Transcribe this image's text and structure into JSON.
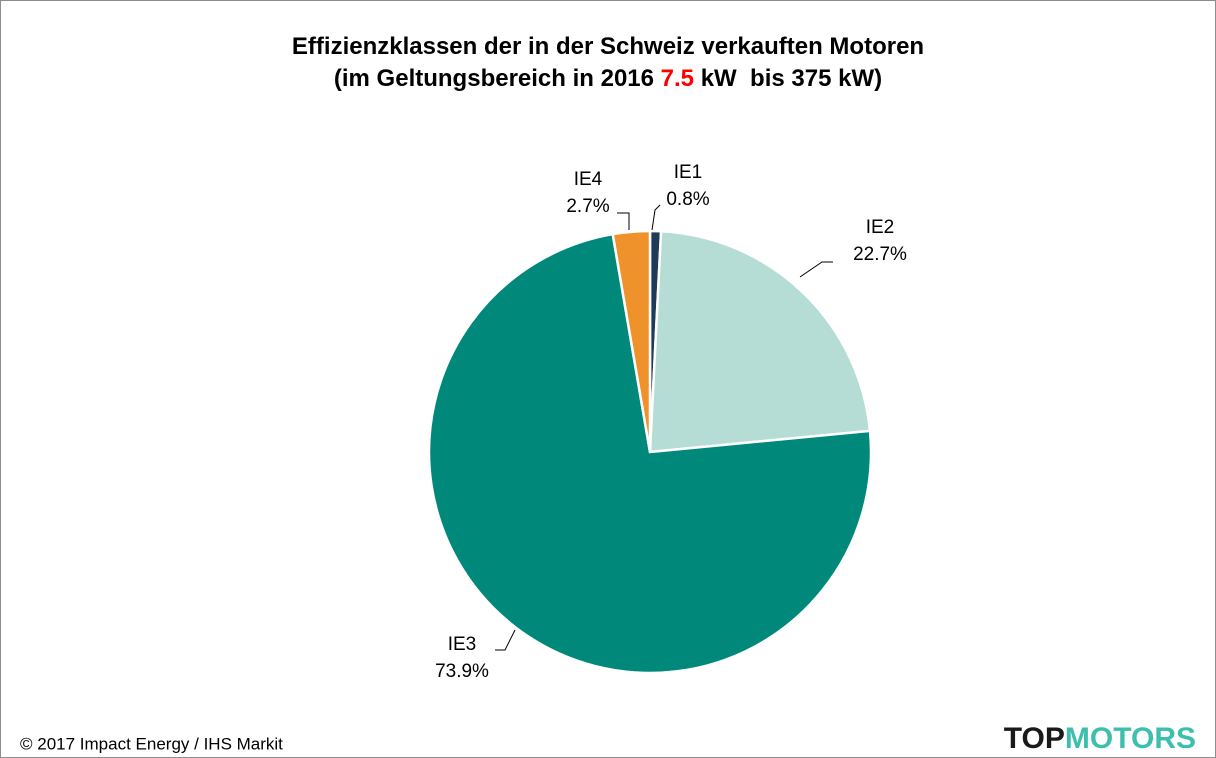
{
  "chart_data": {
    "type": "pie",
    "title": [
      [
        {
          "text": "Effizienzklassen der in der Schweiz verkauften Motoren"
        }
      ],
      [
        {
          "text": "(im Geltungsbereich in 2016 "
        },
        {
          "text": "7.5",
          "color": "#ff0000"
        },
        {
          "text": " kW  bis 375 kW)"
        }
      ]
    ],
    "categories": [
      "IE1",
      "IE2",
      "IE3",
      "IE4"
    ],
    "values": [
      0.8,
      22.7,
      73.9,
      2.7
    ],
    "value_labels": [
      "0.8%",
      "22.7%",
      "73.9%",
      "2.7%"
    ],
    "colors": [
      "#1f3b5a",
      "#b5dcd5",
      "#00897b",
      "#f0922b"
    ],
    "footer": "© 2017 Impact Energy / IHS Markit",
    "logo": [
      {
        "text": "TOP",
        "color": "#1a1a1a"
      },
      {
        "text": "MOTORS",
        "color": "#3dbfae"
      }
    ]
  }
}
